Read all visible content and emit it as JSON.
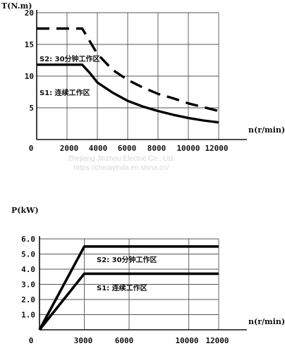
{
  "watermark": [
    "Zhejiang Jinzhou Electric Co., Ltd.",
    "https://chinayinda.en.shina.cn/"
  ],
  "chart_data": [
    {
      "type": "line",
      "ylabel": "T(N.m)",
      "xlabel": "n(r/min)",
      "xlim": [
        0,
        12000
      ],
      "ylim": [
        0,
        20
      ],
      "xticks": [
        0,
        2000,
        4000,
        6000,
        8000,
        10000,
        12000
      ],
      "yticks": [
        5,
        10,
        15,
        20
      ],
      "grid": true,
      "series": [
        {
          "name": "S2: 30分钟工作区",
          "style": "dashed",
          "x": [
            0,
            3000,
            4000,
            5000,
            6000,
            7000,
            8000,
            9000,
            10000,
            11000,
            12000
          ],
          "y": [
            17.5,
            17.5,
            13.5,
            11.0,
            9.4,
            8.2,
            7.2,
            6.5,
            5.7,
            5.1,
            4.5
          ]
        },
        {
          "name": "S1: 连续工作区",
          "style": "solid",
          "x": [
            0,
            3000,
            3500,
            4000,
            5000,
            6000,
            7000,
            8000,
            9000,
            10000,
            11000,
            12000
          ],
          "y": [
            11.8,
            11.8,
            10.5,
            9.0,
            7.4,
            6.1,
            5.2,
            4.5,
            3.9,
            3.4,
            3.0,
            2.7
          ]
        }
      ]
    },
    {
      "type": "line",
      "ylabel": "P(kW)",
      "xlabel": "n(r/min)",
      "xlim": [
        0,
        12000
      ],
      "ylim": [
        0,
        6
      ],
      "xticks": [
        0,
        3000,
        6000,
        10000,
        12000
      ],
      "yticks": [
        1.0,
        2.0,
        3.0,
        4.0,
        5.0,
        6.0
      ],
      "grid": true,
      "series": [
        {
          "name": "S2: 30分钟工作区",
          "style": "solid",
          "x": [
            0,
            3000,
            12000
          ],
          "y": [
            0,
            5.5,
            5.5
          ]
        },
        {
          "name": "S1: 连续工作区",
          "style": "solid",
          "x": [
            0,
            3000,
            12000
          ],
          "y": [
            0,
            3.7,
            3.7
          ]
        }
      ]
    }
  ]
}
